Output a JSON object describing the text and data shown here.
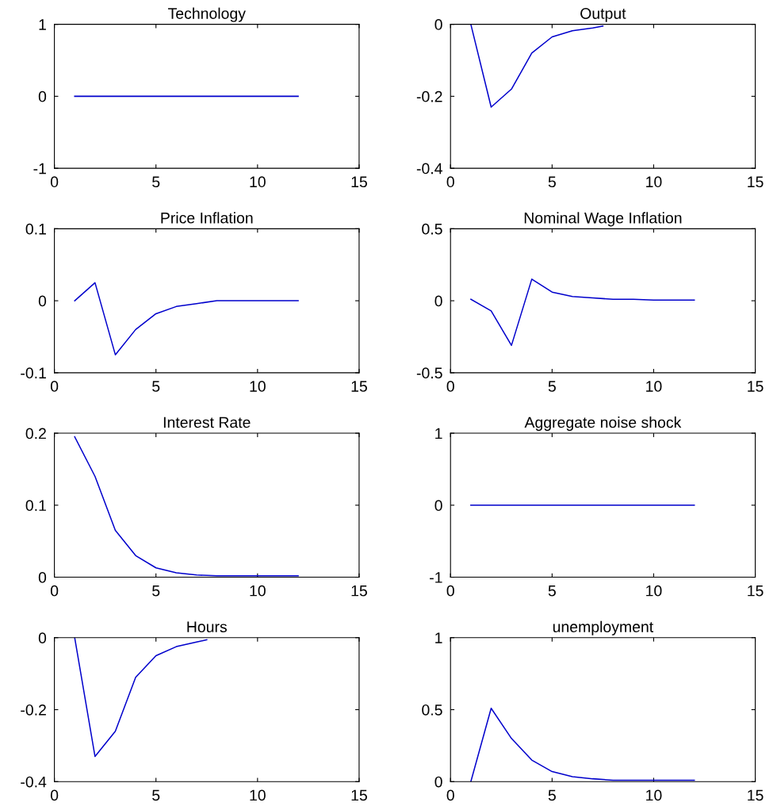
{
  "chart_data": [
    {
      "type": "line",
      "title": "Technology",
      "x": [
        1,
        2,
        3,
        4,
        5,
        6,
        7,
        8,
        9,
        10,
        11,
        12
      ],
      "series": [
        {
          "color": "#0000cc",
          "values": [
            0,
            0,
            0,
            0,
            0,
            0,
            0,
            0,
            0,
            0,
            0,
            0
          ]
        }
      ],
      "xlim": [
        0,
        15
      ],
      "xticks": [
        0,
        5,
        10,
        15
      ],
      "ylim": [
        -1,
        1
      ],
      "yticks": [
        -1,
        0,
        1
      ],
      "grid": false
    },
    {
      "type": "line",
      "title": "Output",
      "x": [
        1,
        2,
        3,
        4,
        5,
        6,
        7,
        7.5
      ],
      "series": [
        {
          "color": "#0000cc",
          "values": [
            0,
            -0.23,
            -0.18,
            -0.08,
            -0.035,
            -0.018,
            -0.01,
            -0.005
          ]
        }
      ],
      "xlim": [
        0,
        15
      ],
      "xticks": [
        0,
        5,
        10,
        15
      ],
      "ylim": [
        -0.4,
        0
      ],
      "yticks": [
        -0.4,
        -0.2,
        0
      ],
      "grid": false
    },
    {
      "type": "line",
      "title": "Price Inflation",
      "x": [
        1,
        2,
        3,
        4,
        5,
        6,
        7,
        8,
        9,
        10,
        11,
        12
      ],
      "series": [
        {
          "color": "#0000cc",
          "values": [
            0,
            0.025,
            -0.075,
            -0.04,
            -0.018,
            -0.008,
            -0.004,
            0,
            0,
            0,
            0,
            0
          ]
        }
      ],
      "xlim": [
        0,
        15
      ],
      "xticks": [
        0,
        5,
        10,
        15
      ],
      "ylim": [
        -0.1,
        0.1
      ],
      "yticks": [
        -0.1,
        0,
        0.1
      ],
      "grid": false
    },
    {
      "type": "line",
      "title": "Nominal Wage Inflation",
      "x": [
        1,
        2,
        3,
        4,
        5,
        6,
        7,
        8,
        9,
        10,
        11,
        12
      ],
      "series": [
        {
          "color": "#0000cc",
          "values": [
            0.01,
            -0.07,
            -0.31,
            0.15,
            0.06,
            0.03,
            0.02,
            0.01,
            0.01,
            0.005,
            0.005,
            0.005
          ]
        }
      ],
      "xlim": [
        0,
        15
      ],
      "xticks": [
        0,
        5,
        10,
        15
      ],
      "ylim": [
        -0.5,
        0.5
      ],
      "yticks": [
        -0.5,
        0,
        0.5
      ],
      "grid": false
    },
    {
      "type": "line",
      "title": "Interest Rate",
      "x": [
        1,
        2,
        3,
        4,
        5,
        6,
        7,
        8,
        9,
        10,
        11,
        12
      ],
      "series": [
        {
          "color": "#0000cc",
          "values": [
            0.195,
            0.14,
            0.065,
            0.03,
            0.013,
            0.006,
            0.003,
            0.002,
            0.002,
            0.002,
            0.002,
            0.002
          ]
        }
      ],
      "xlim": [
        0,
        15
      ],
      "xticks": [
        0,
        5,
        10,
        15
      ],
      "ylim": [
        0,
        0.2
      ],
      "yticks": [
        0,
        0.1,
        0.2
      ],
      "grid": false
    },
    {
      "type": "line",
      "title": "Aggregate noise shock",
      "x": [
        1,
        2,
        3,
        4,
        5,
        6,
        7,
        8,
        9,
        10,
        11,
        12
      ],
      "series": [
        {
          "color": "#0000cc",
          "values": [
            0,
            0,
            0,
            0,
            0,
            0,
            0,
            0,
            0,
            0,
            0,
            0
          ]
        }
      ],
      "xlim": [
        0,
        15
      ],
      "xticks": [
        0,
        5,
        10,
        15
      ],
      "ylim": [
        -1,
        1
      ],
      "yticks": [
        -1,
        0,
        1
      ],
      "grid": false
    },
    {
      "type": "line",
      "title": "Hours",
      "x": [
        1,
        2,
        3,
        4,
        5,
        6,
        7,
        7.5
      ],
      "series": [
        {
          "color": "#0000cc",
          "values": [
            0,
            -0.33,
            -0.26,
            -0.11,
            -0.05,
            -0.025,
            -0.012,
            -0.006
          ]
        }
      ],
      "xlim": [
        0,
        15
      ],
      "xticks": [
        0,
        5,
        10,
        15
      ],
      "ylim": [
        -0.4,
        0
      ],
      "yticks": [
        -0.4,
        -0.2,
        0
      ],
      "grid": false
    },
    {
      "type": "line",
      "title": "unemployment",
      "x": [
        1,
        2,
        3,
        4,
        5,
        6,
        7,
        8,
        9,
        10,
        11,
        12
      ],
      "series": [
        {
          "color": "#0000cc",
          "values": [
            0,
            0.51,
            0.3,
            0.15,
            0.07,
            0.035,
            0.02,
            0.01,
            0.01,
            0.01,
            0.01,
            0.01
          ]
        }
      ],
      "xlim": [
        0,
        15
      ],
      "xticks": [
        0,
        5,
        10,
        15
      ],
      "ylim": [
        0,
        1
      ],
      "yticks": [
        0,
        0.5,
        1
      ],
      "grid": false
    }
  ]
}
